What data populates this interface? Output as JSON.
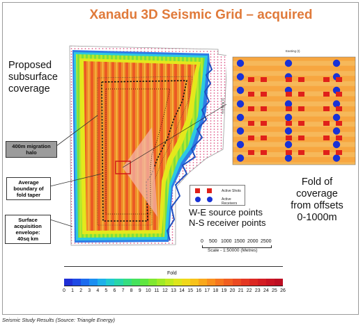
{
  "title": "Xanadu 3D Seismic Grid – acquired",
  "labels": {
    "proposed": [
      "Proposed",
      "subsurface",
      "coverage"
    ],
    "fold_of": [
      "Fold of",
      "coverage",
      "from offsets",
      "0-1000m"
    ],
    "source_receiver": [
      "W-E source points",
      "N-S receiver points"
    ]
  },
  "callouts": {
    "migration_halo": [
      "400m migration",
      "halo"
    ],
    "avg_boundary": [
      "Average",
      "boundary of",
      "fold taper"
    ],
    "surface_env": [
      "Surface acquisition",
      "envelope:",
      "40sq km"
    ]
  },
  "inset": {
    "axis_title": "Easting (t)",
    "side_axis_title": "Northing (t)",
    "legend": {
      "shots": "Active Shots",
      "receivers": "Active Receivers"
    }
  },
  "scale": {
    "ticks": [
      "0",
      "500",
      "1000",
      "1500",
      "2000",
      "2500"
    ],
    "label": "Scale - 1:50000 (Metres)"
  },
  "colorbar": {
    "title": "Fold",
    "ticks": [
      "0",
      "1",
      "2",
      "3",
      "4",
      "5",
      "6",
      "7",
      "8",
      "9",
      "10",
      "11",
      "12",
      "13",
      "14",
      "15",
      "16",
      "17",
      "18",
      "19",
      "20",
      "21",
      "22",
      "23",
      "24",
      "25",
      "26"
    ],
    "colors": [
      "#1f2fd6",
      "#1d49e4",
      "#1b6bee",
      "#1b8ff2",
      "#1db0ea",
      "#20c9d0",
      "#28d6a8",
      "#35de80",
      "#45e25c",
      "#5fe640",
      "#7fe82f",
      "#a0ea25",
      "#c0ea1f",
      "#dde51c",
      "#f0d81a",
      "#f7c21a",
      "#f9a81b",
      "#f98f1d",
      "#f6761f",
      "#f15f20",
      "#eb4a21",
      "#e43722",
      "#dc2822",
      "#d31c22",
      "#c81322",
      "#bd0e22"
    ]
  },
  "caption": "Seismic Study Results (Source: Triangle Energy)"
}
